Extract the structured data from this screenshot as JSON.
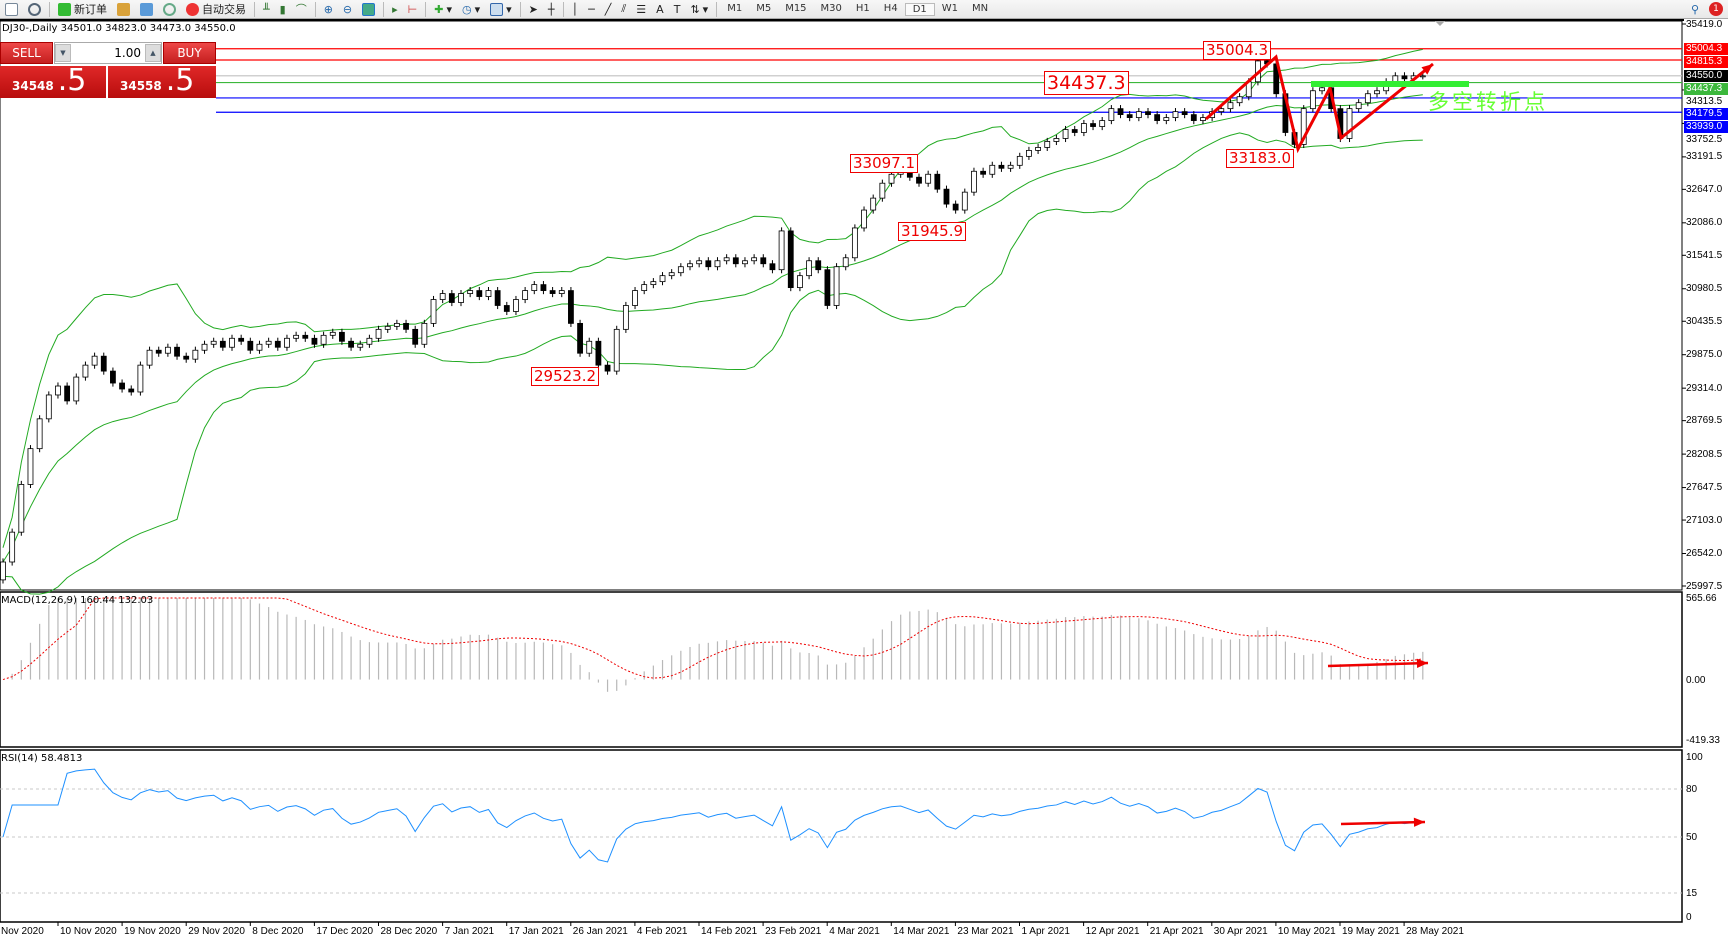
{
  "toolbar": {
    "new_order": "新订单",
    "auto_trading": "自动交易",
    "timeframes": [
      "M1",
      "M5",
      "M15",
      "M30",
      "H1",
      "H4",
      "D1",
      "W1",
      "MN"
    ],
    "active_timeframe": "D1",
    "notification_count": "1"
  },
  "chart": {
    "symbol_info": "DJ30-,Daily  34501.0 34823.0 34473.0 34550.0",
    "accent": "#e00000"
  },
  "trade_panel": {
    "sell_label": "SELL",
    "buy_label": "BUY",
    "lot": "1.00",
    "sell_price_main": "34548",
    "sell_price_frac": ".5",
    "buy_price_main": "34558",
    "buy_price_frac": ".5"
  },
  "price_axis": [
    "35419.0",
    "34313.5",
    "33752.5",
    "33191.5",
    "32647.0",
    "32086.0",
    "31541.5",
    "30980.5",
    "30435.5",
    "29875.0",
    "29314.0",
    "28769.5",
    "28208.5",
    "27647.5",
    "27103.0",
    "26542.0",
    "25997.5"
  ],
  "price_range": [
    25997.5,
    35419.0
  ],
  "levels": [
    {
      "value": "35004.3",
      "color": "#ff0000"
    },
    {
      "value": "34815.3",
      "color": "#ff0000"
    },
    {
      "value": "34550.0",
      "color": "#000000",
      "line": "#c0c0c0"
    },
    {
      "value": "34437.3",
      "color": "#3cb83c"
    },
    {
      "value": "34179.5",
      "color": "#0000ff"
    },
    {
      "value": "33939.0",
      "color": "#0000ff"
    }
  ],
  "annotations": [
    "35004.3",
    "34437.3",
    "33097.1",
    "31945.9",
    "29523.2",
    "33183.0"
  ],
  "turning_point_text": "多空转折点",
  "macd": {
    "label": "MACD(12,26,9) 160.44 132.03",
    "axis": [
      "565.66",
      "0.00",
      "-419.33"
    ],
    "range": [
      -419.33,
      565.66
    ]
  },
  "rsi": {
    "label": "RSI(14) 58.4813",
    "axis": [
      "100",
      "80",
      "50",
      "15",
      "0"
    ],
    "levels": [
      80,
      50,
      15
    ]
  },
  "dates": [
    "Nov 2020",
    "10 Nov 2020",
    "19 Nov 2020",
    "29 Nov 2020",
    "8 Dec 2020",
    "17 Dec 2020",
    "28 Dec 2020",
    "7 Jan 2021",
    "17 Jan 2021",
    "26 Jan 2021",
    "4 Feb 2021",
    "14 Feb 2021",
    "23 Feb 2021",
    "4 Mar 2021",
    "14 Mar 2021",
    "23 Mar 2021",
    "1 Apr 2021",
    "12 Apr 2021",
    "21 Apr 2021",
    "30 Apr 2021",
    "10 May 2021",
    "19 May 2021",
    "28 May 2021"
  ],
  "chart_data": {
    "type": "candlestick",
    "closes": [
      26400,
      26900,
      27700,
      28300,
      28800,
      29200,
      29350,
      29100,
      29500,
      29700,
      29850,
      29600,
      29400,
      29300,
      29250,
      29700,
      29950,
      29900,
      30000,
      29850,
      29800,
      29950,
      30050,
      30100,
      30000,
      30150,
      30100,
      29950,
      30050,
      30100,
      30000,
      30150,
      30200,
      30150,
      30050,
      30200,
      30250,
      30100,
      30000,
      30050,
      30150,
      30300,
      30350,
      30400,
      30300,
      30050,
      30400,
      30800,
      30900,
      30750,
      30900,
      30950,
      30850,
      30950,
      30700,
      30600,
      30800,
      30950,
      31050,
      30950,
      30900,
      30950,
      30400,
      29900,
      30100,
      29700,
      29600,
      30300,
      30700,
      30950,
      31050,
      31100,
      31200,
      31250,
      31350,
      31400,
      31450,
      31350,
      31450,
      31500,
      31400,
      31450,
      31500,
      31400,
      31300,
      31950,
      31000,
      31200,
      31450,
      31300,
      30700,
      31350,
      31500,
      32000,
      32300,
      32500,
      32750,
      32900,
      32950,
      32850,
      32750,
      32900,
      32650,
      32400,
      32300,
      32600,
      32950,
      32900,
      33050,
      33000,
      33050,
      33200,
      33300,
      33350,
      33450,
      33500,
      33650,
      33600,
      33750,
      33700,
      33800,
      34000,
      33900,
      33850,
      33950,
      33900,
      33800,
      33850,
      33950,
      33900,
      33800,
      33850,
      33950,
      34000,
      34100,
      34200,
      34450,
      34800,
      34750,
      34250,
      33600,
      33400,
      34000,
      34300,
      34350,
      34000,
      33500,
      34000,
      34100,
      34250,
      34300,
      34450,
      34550,
      34500,
      34550,
      34550
    ]
  }
}
